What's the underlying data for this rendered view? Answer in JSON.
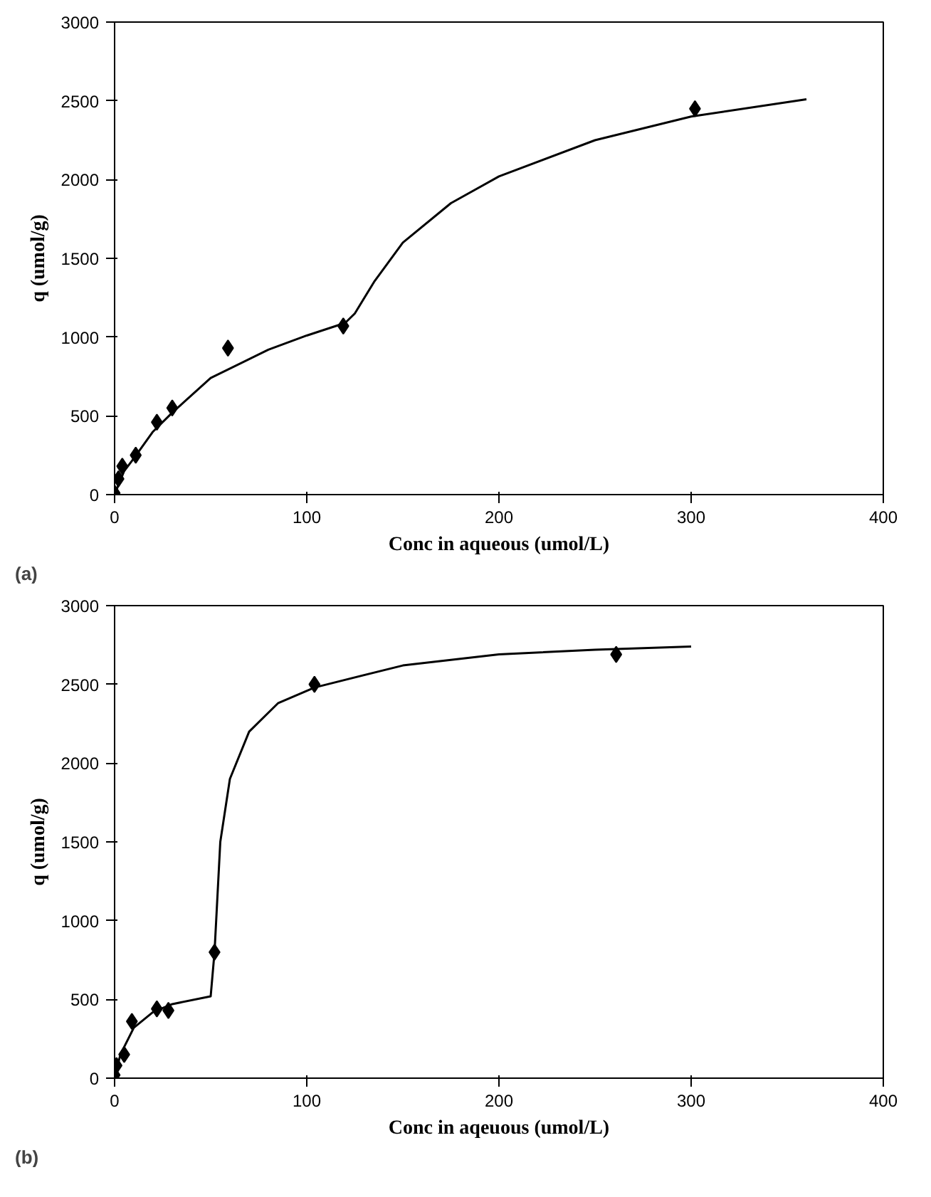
{
  "chart_data": [
    {
      "type": "scatter",
      "xlabel": "Conc in aqueous (umol/L)",
      "ylabel": "q (umol/g)",
      "annotations": [
        "(a)"
      ],
      "xlim": [
        0,
        400
      ],
      "ylim": [
        0,
        3000
      ],
      "xticks": [
        0,
        100,
        200,
        300,
        400
      ],
      "yticks": [
        0,
        500,
        1000,
        1500,
        2000,
        2500,
        3000
      ],
      "grid": false,
      "series": [
        {
          "marker": "diamond",
          "color": "#000000",
          "x": [
            0,
            2,
            4,
            11,
            22,
            30,
            59,
            119,
            302
          ],
          "values": [
            10,
            100,
            180,
            250,
            460,
            550,
            930,
            1070,
            2450
          ]
        },
        {
          "type": "line",
          "color": "#000000",
          "line_style": "solid",
          "x": [
            0,
            5,
            10,
            20,
            30,
            50,
            80,
            100,
            120,
            125,
            135,
            150,
            175,
            200,
            250,
            300,
            360
          ],
          "values": [
            0,
            150,
            230,
            400,
            520,
            740,
            920,
            1010,
            1090,
            1150,
            1350,
            1600,
            1850,
            2020,
            2250,
            2400,
            2510
          ]
        }
      ]
    },
    {
      "type": "scatter",
      "xlabel": "Conc in aqeuous (umol/L)",
      "ylabel": "q (umol/g)",
      "annotations": [
        "(b)"
      ],
      "xlim": [
        0,
        400
      ],
      "ylim": [
        0,
        3000
      ],
      "xticks": [
        0,
        100,
        200,
        300,
        400
      ],
      "yticks": [
        0,
        500,
        1000,
        1500,
        2000,
        2500,
        3000
      ],
      "grid": false,
      "series": [
        {
          "marker": "diamond",
          "color": "#000000",
          "x": [
            0,
            1,
            5,
            9,
            22,
            28,
            52,
            104,
            261
          ],
          "values": [
            20,
            80,
            150,
            360,
            440,
            430,
            800,
            2500,
            2690
          ]
        },
        {
          "type": "line",
          "color": "#000000",
          "line_style": "solid",
          "x": [
            0,
            3,
            10,
            20,
            30,
            50,
            52,
            55,
            60,
            70,
            85,
            104,
            150,
            200,
            250,
            300
          ],
          "values": [
            0,
            150,
            320,
            420,
            470,
            520,
            800,
            1500,
            1900,
            2200,
            2380,
            2480,
            2620,
            2690,
            2720,
            2740
          ]
        }
      ]
    }
  ]
}
